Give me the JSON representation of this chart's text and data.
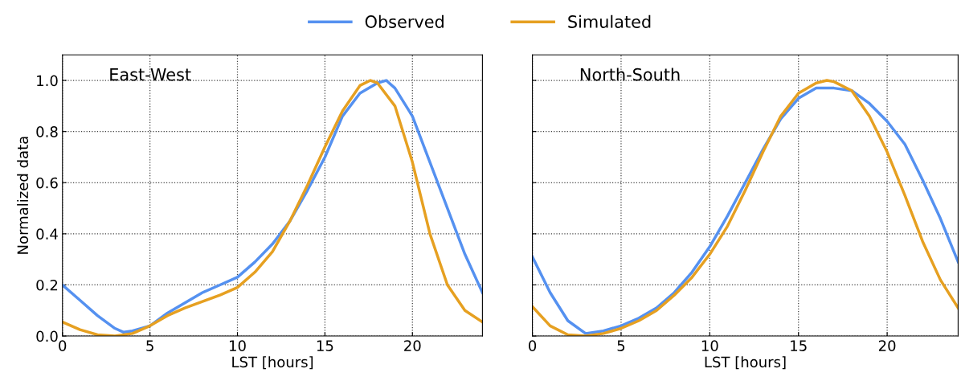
{
  "chart_data": [
    {
      "type": "line",
      "xlabel": "LST [hours]",
      "ylabel": "Normalized data",
      "annotations": [
        "East-West"
      ],
      "xlim": [
        0,
        24
      ],
      "ylim": [
        0,
        1.1
      ],
      "xticks": [
        0,
        5,
        10,
        15,
        20
      ],
      "yticks": [
        {
          "value": 0,
          "label": "0.0"
        },
        0.2,
        0.4,
        0.6,
        0.8,
        {
          "value": 1,
          "label": "1.0"
        }
      ],
      "grid": true,
      "legend": "top",
      "line_style": "solid",
      "marker": "none",
      "series": [
        {
          "name": "Observed",
          "color": "#5591f0",
          "x": [
            0,
            1,
            2,
            3,
            3.5,
            4,
            5,
            6,
            7,
            8,
            9,
            10,
            11,
            12,
            13,
            14,
            15,
            16,
            17,
            18,
            18.5,
            19,
            20,
            21,
            22,
            23,
            24
          ],
          "values": [
            0.2,
            0.14,
            0.08,
            0.03,
            0.015,
            0.02,
            0.04,
            0.09,
            0.13,
            0.17,
            0.2,
            0.23,
            0.29,
            0.36,
            0.45,
            0.57,
            0.7,
            0.86,
            0.95,
            0.99,
            1.0,
            0.97,
            0.86,
            0.68,
            0.5,
            0.32,
            0.17
          ]
        },
        {
          "name": "Simulated",
          "color": "#e6a021",
          "x": [
            0,
            1,
            2,
            3,
            4,
            5,
            6,
            7,
            8,
            9,
            10,
            11,
            12,
            13,
            14,
            15,
            16,
            17,
            17.6,
            18,
            19,
            20,
            21,
            22,
            23,
            24
          ],
          "values": [
            0.055,
            0.025,
            0.005,
            0.0,
            0.01,
            0.04,
            0.08,
            0.11,
            0.135,
            0.16,
            0.19,
            0.25,
            0.33,
            0.45,
            0.59,
            0.74,
            0.88,
            0.98,
            1.0,
            0.99,
            0.9,
            0.68,
            0.4,
            0.2,
            0.1,
            0.055
          ]
        }
      ]
    },
    {
      "type": "line",
      "xlabel": "LST [hours]",
      "annotations": [
        "North-South"
      ],
      "xlim": [
        0,
        24
      ],
      "ylim": [
        0,
        1.1
      ],
      "xticks": [
        0,
        5,
        10,
        15,
        20
      ],
      "yticks": [
        {
          "value": 0,
          "label": null
        },
        {
          "value": 0.2,
          "label": null
        },
        {
          "value": 0.4,
          "label": null
        },
        {
          "value": 0.6,
          "label": null
        },
        {
          "value": 0.8,
          "label": null
        },
        {
          "value": 1,
          "label": null
        }
      ],
      "tick_labels": "x",
      "grid": true,
      "line_style": "solid",
      "marker": "none",
      "series": [
        {
          "color": "#5591f0",
          "x": [
            0,
            1,
            2,
            3,
            4,
            5,
            6,
            7,
            8,
            9,
            10,
            11,
            12,
            13,
            14,
            15,
            16,
            17,
            18,
            19,
            20,
            21,
            22,
            23,
            24
          ],
          "values": [
            0.31,
            0.17,
            0.06,
            0.01,
            0.02,
            0.04,
            0.07,
            0.11,
            0.17,
            0.25,
            0.35,
            0.47,
            0.6,
            0.73,
            0.85,
            0.93,
            0.97,
            0.97,
            0.96,
            0.91,
            0.84,
            0.75,
            0.61,
            0.46,
            0.29
          ]
        },
        {
          "color": "#e6a021",
          "x": [
            0,
            1,
            2,
            3,
            4,
            5,
            6,
            7,
            8,
            9,
            10,
            11,
            12,
            13,
            14,
            15,
            16,
            16.6,
            17,
            18,
            19,
            20,
            21,
            22,
            23,
            24
          ],
          "values": [
            0.115,
            0.04,
            0.005,
            0.0,
            0.01,
            0.03,
            0.06,
            0.1,
            0.16,
            0.23,
            0.32,
            0.43,
            0.57,
            0.72,
            0.86,
            0.95,
            0.99,
            1.0,
            0.995,
            0.96,
            0.86,
            0.72,
            0.55,
            0.37,
            0.22,
            0.11
          ]
        }
      ]
    }
  ]
}
